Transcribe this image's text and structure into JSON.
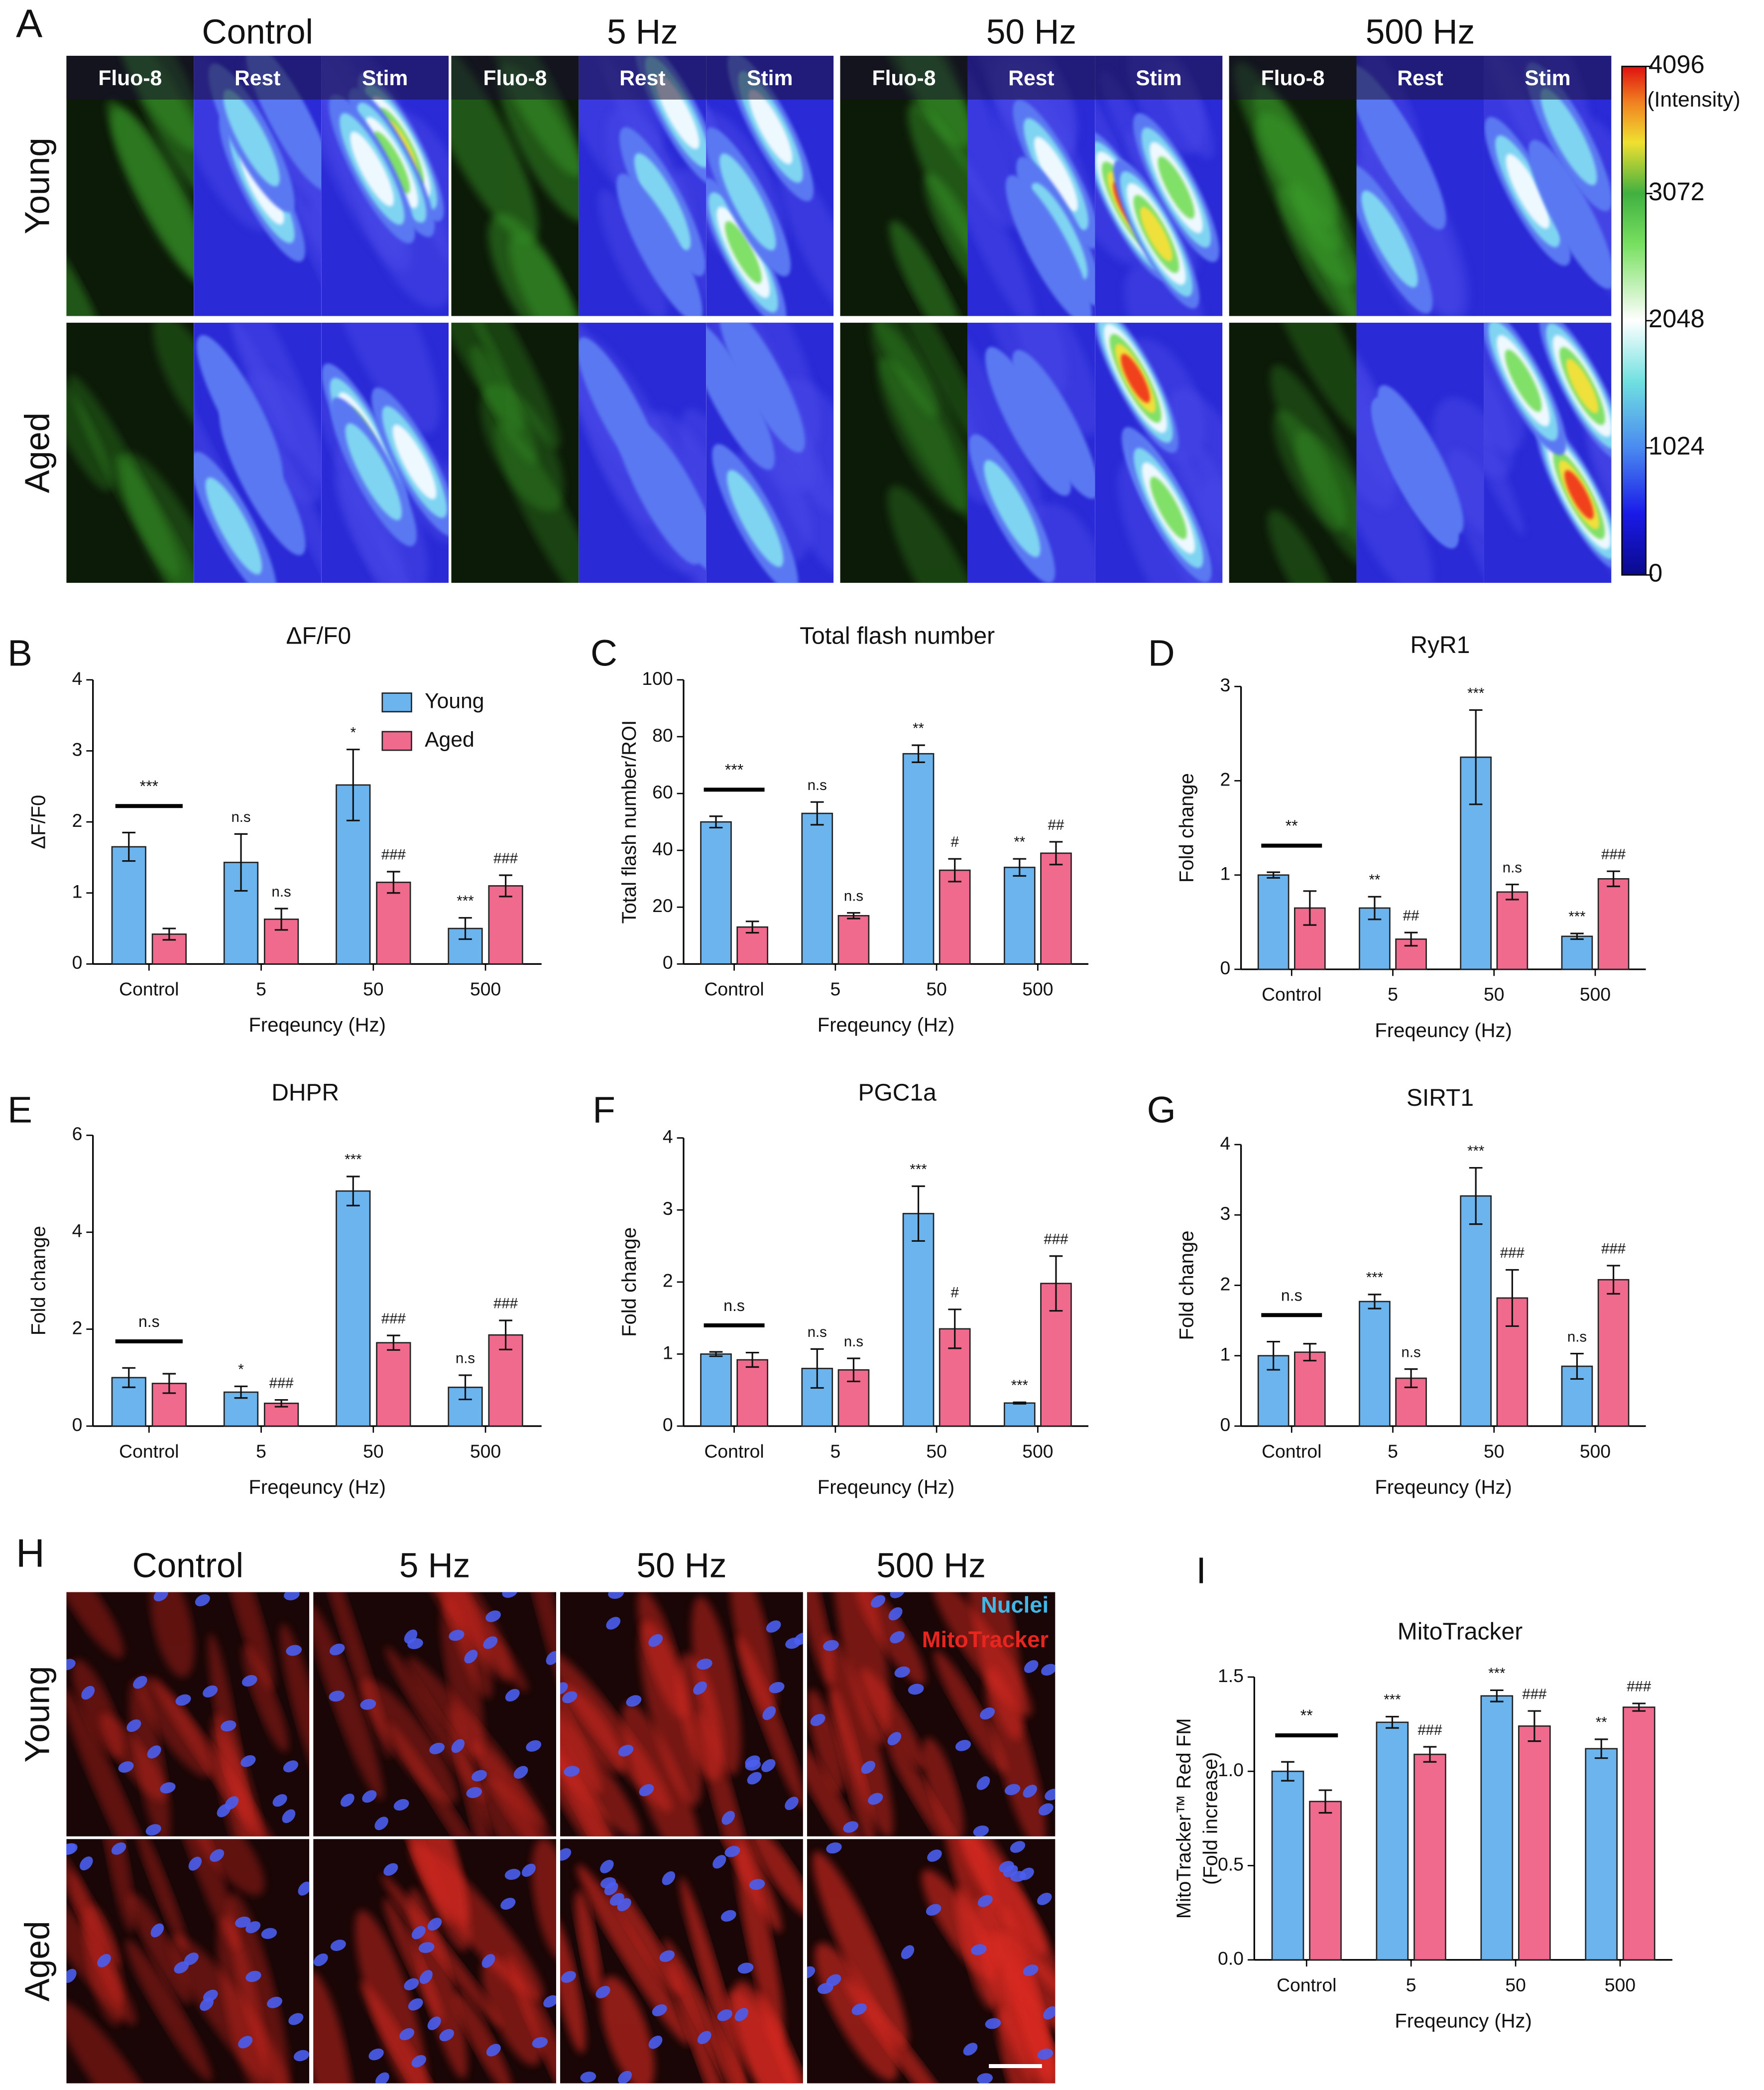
{
  "panel_A": {
    "letter": "A",
    "columns": [
      "Control",
      "5 Hz",
      "50 Hz",
      "500 Hz"
    ],
    "subheaders": [
      "Fluo-8",
      "Rest",
      "Stim"
    ],
    "rows": [
      "Young",
      "Aged"
    ],
    "colorbar": {
      "lim": [
        0,
        4096
      ],
      "ticks": [
        0,
        1024,
        2048,
        3072,
        4096
      ],
      "unit": "(Intensity)"
    }
  },
  "panel_H": {
    "letter": "H",
    "columns": [
      "Control",
      "5 Hz",
      "50 Hz",
      "500 Hz"
    ],
    "rows": [
      "Young",
      "Aged"
    ],
    "channels": [
      {
        "name": "Nuclei",
        "color": "#3fb8e8"
      },
      {
        "name": "MitoTracker",
        "color": "#e8261f"
      }
    ]
  },
  "chart_data": [
    {
      "type": "bar",
      "panel": "B",
      "title": "ΔF/F0",
      "ylabel": "ΔF/F0",
      "xlabel": "Freqeuncy (Hz)",
      "categories": [
        "Control",
        "5",
        "50",
        "500"
      ],
      "series": [
        {
          "name": "Young",
          "color": "#6cb4ee",
          "values": [
            1.65,
            1.43,
            2.52,
            0.5
          ],
          "errors": [
            0.2,
            0.4,
            0.5,
            0.15
          ],
          "labels": [
            null,
            "n.s",
            "*",
            "***"
          ]
        },
        {
          "name": "Aged",
          "color": "#f06a8e",
          "values": [
            0.42,
            0.63,
            1.15,
            1.1
          ],
          "errors": [
            0.08,
            0.15,
            0.15,
            0.15
          ],
          "labels": [
            null,
            "n.s",
            "###",
            "###"
          ]
        }
      ],
      "bracket_label": "***",
      "ylim": [
        0,
        4
      ],
      "yticks": [
        0,
        1,
        2,
        3,
        4
      ],
      "legend": "upper right"
    },
    {
      "type": "bar",
      "panel": "C",
      "title": "Total flash number",
      "ylabel": "Total  flash number/ROI",
      "xlabel": "Freqeuncy (Hz)",
      "categories": [
        "Control",
        "5",
        "50",
        "500"
      ],
      "series": [
        {
          "name": "Young",
          "color": "#6cb4ee",
          "values": [
            50,
            53,
            74,
            34
          ],
          "errors": [
            2,
            4,
            3,
            3
          ],
          "labels": [
            null,
            "n.s",
            "**",
            "**"
          ]
        },
        {
          "name": "Aged",
          "color": "#f06a8e",
          "values": [
            13,
            17,
            33,
            39
          ],
          "errors": [
            2,
            1,
            4,
            4
          ],
          "labels": [
            null,
            "n.s",
            "#",
            "##"
          ]
        }
      ],
      "bracket_label": "***",
      "ylim": [
        0,
        100
      ],
      "yticks": [
        0,
        20,
        40,
        60,
        80,
        100
      ]
    },
    {
      "type": "bar",
      "panel": "D",
      "title": "RyR1",
      "ylabel": "Fold change",
      "xlabel": "Freqeuncy (Hz)",
      "categories": [
        "Control",
        "5",
        "50",
        "500"
      ],
      "series": [
        {
          "name": "Young",
          "color": "#6cb4ee",
          "values": [
            1.0,
            0.65,
            2.25,
            0.35
          ],
          "errors": [
            0.03,
            0.12,
            0.5,
            0.03
          ],
          "labels": [
            null,
            "**",
            "***",
            "***"
          ]
        },
        {
          "name": "Aged",
          "color": "#f06a8e",
          "values": [
            0.65,
            0.32,
            0.82,
            0.96
          ],
          "errors": [
            0.18,
            0.07,
            0.08,
            0.08
          ],
          "labels": [
            null,
            "##",
            "n.s",
            "###"
          ]
        }
      ],
      "bracket_label": "**",
      "ylim": [
        0,
        3
      ],
      "yticks": [
        0,
        1,
        2,
        3
      ]
    },
    {
      "type": "bar",
      "panel": "E",
      "title": "DHPR",
      "ylabel": "Fold change",
      "xlabel": "Freqeuncy (Hz)",
      "categories": [
        "Control",
        "5",
        "50",
        "500"
      ],
      "series": [
        {
          "name": "Young",
          "color": "#6cb4ee",
          "values": [
            1.0,
            0.7,
            4.85,
            0.8
          ],
          "errors": [
            0.2,
            0.12,
            0.3,
            0.25
          ],
          "labels": [
            null,
            "*",
            "***",
            "n.s"
          ]
        },
        {
          "name": "Aged",
          "color": "#f06a8e",
          "values": [
            0.88,
            0.47,
            1.72,
            1.88
          ],
          "errors": [
            0.2,
            0.07,
            0.15,
            0.3
          ],
          "labels": [
            null,
            "###",
            "###",
            "###"
          ]
        }
      ],
      "bracket_label": "n.s",
      "ylim": [
        0,
        6
      ],
      "yticks": [
        0,
        2,
        4,
        6
      ]
    },
    {
      "type": "bar",
      "panel": "F",
      "title": "PGC1a",
      "ylabel": "Fold change",
      "xlabel": "Freqeuncy (Hz)",
      "categories": [
        "Control",
        "5",
        "50",
        "500"
      ],
      "series": [
        {
          "name": "Young",
          "color": "#6cb4ee",
          "values": [
            1.0,
            0.8,
            2.95,
            0.32
          ],
          "errors": [
            0.03,
            0.27,
            0.38,
            0.01
          ],
          "labels": [
            null,
            "n.s",
            "***",
            "***"
          ]
        },
        {
          "name": "Aged",
          "color": "#f06a8e",
          "values": [
            0.92,
            0.78,
            1.35,
            1.98
          ],
          "errors": [
            0.1,
            0.16,
            0.27,
            0.38
          ],
          "labels": [
            null,
            "n.s",
            "#",
            "###"
          ]
        }
      ],
      "bracket_label": "n.s",
      "ylim": [
        0,
        4
      ],
      "yticks": [
        0,
        1,
        2,
        3,
        4
      ]
    },
    {
      "type": "bar",
      "panel": "G",
      "title": "SIRT1",
      "ylabel": "Fold change",
      "xlabel": "Freqeuncy (Hz)",
      "categories": [
        "Control",
        "5",
        "50",
        "500"
      ],
      "series": [
        {
          "name": "Young",
          "color": "#6cb4ee",
          "values": [
            1.0,
            1.77,
            3.27,
            0.85
          ],
          "errors": [
            0.2,
            0.1,
            0.4,
            0.18
          ],
          "labels": [
            null,
            "***",
            "***",
            "n.s"
          ]
        },
        {
          "name": "Aged",
          "color": "#f06a8e",
          "values": [
            1.05,
            0.68,
            1.82,
            2.08
          ],
          "errors": [
            0.12,
            0.13,
            0.4,
            0.2
          ],
          "labels": [
            null,
            "n.s",
            "###",
            "###"
          ]
        }
      ],
      "bracket_label": "n.s",
      "ylim": [
        0,
        4
      ],
      "yticks": [
        0,
        1,
        2,
        3,
        4
      ]
    },
    {
      "type": "bar",
      "panel": "I",
      "title": "MitoTracker",
      "ylabel_lines": [
        "MitoTracker™ Red FM",
        "(Fold increase)"
      ],
      "xlabel": "Freqeuncy (Hz)",
      "categories": [
        "Control",
        "5",
        "50",
        "500"
      ],
      "series": [
        {
          "name": "Young",
          "color": "#6cb4ee",
          "values": [
            1.0,
            1.26,
            1.4,
            1.12
          ],
          "errors": [
            0.05,
            0.03,
            0.03,
            0.05
          ],
          "labels": [
            null,
            "***",
            "***",
            "**"
          ]
        },
        {
          "name": "Aged",
          "color": "#f06a8e",
          "values": [
            0.84,
            1.09,
            1.24,
            1.34
          ],
          "errors": [
            0.06,
            0.04,
            0.08,
            0.02
          ],
          "labels": [
            null,
            "###",
            "###",
            "###"
          ]
        }
      ],
      "bracket_label": "**",
      "ylim": [
        0,
        1.5
      ],
      "yticks": [
        {
          "value": 0,
          "label": "0.0"
        },
        {
          "value": 0.5,
          "label": "0.5"
        },
        {
          "value": 1,
          "label": "1.0"
        },
        {
          "value": 1.5,
          "label": "1.5"
        }
      ]
    }
  ]
}
